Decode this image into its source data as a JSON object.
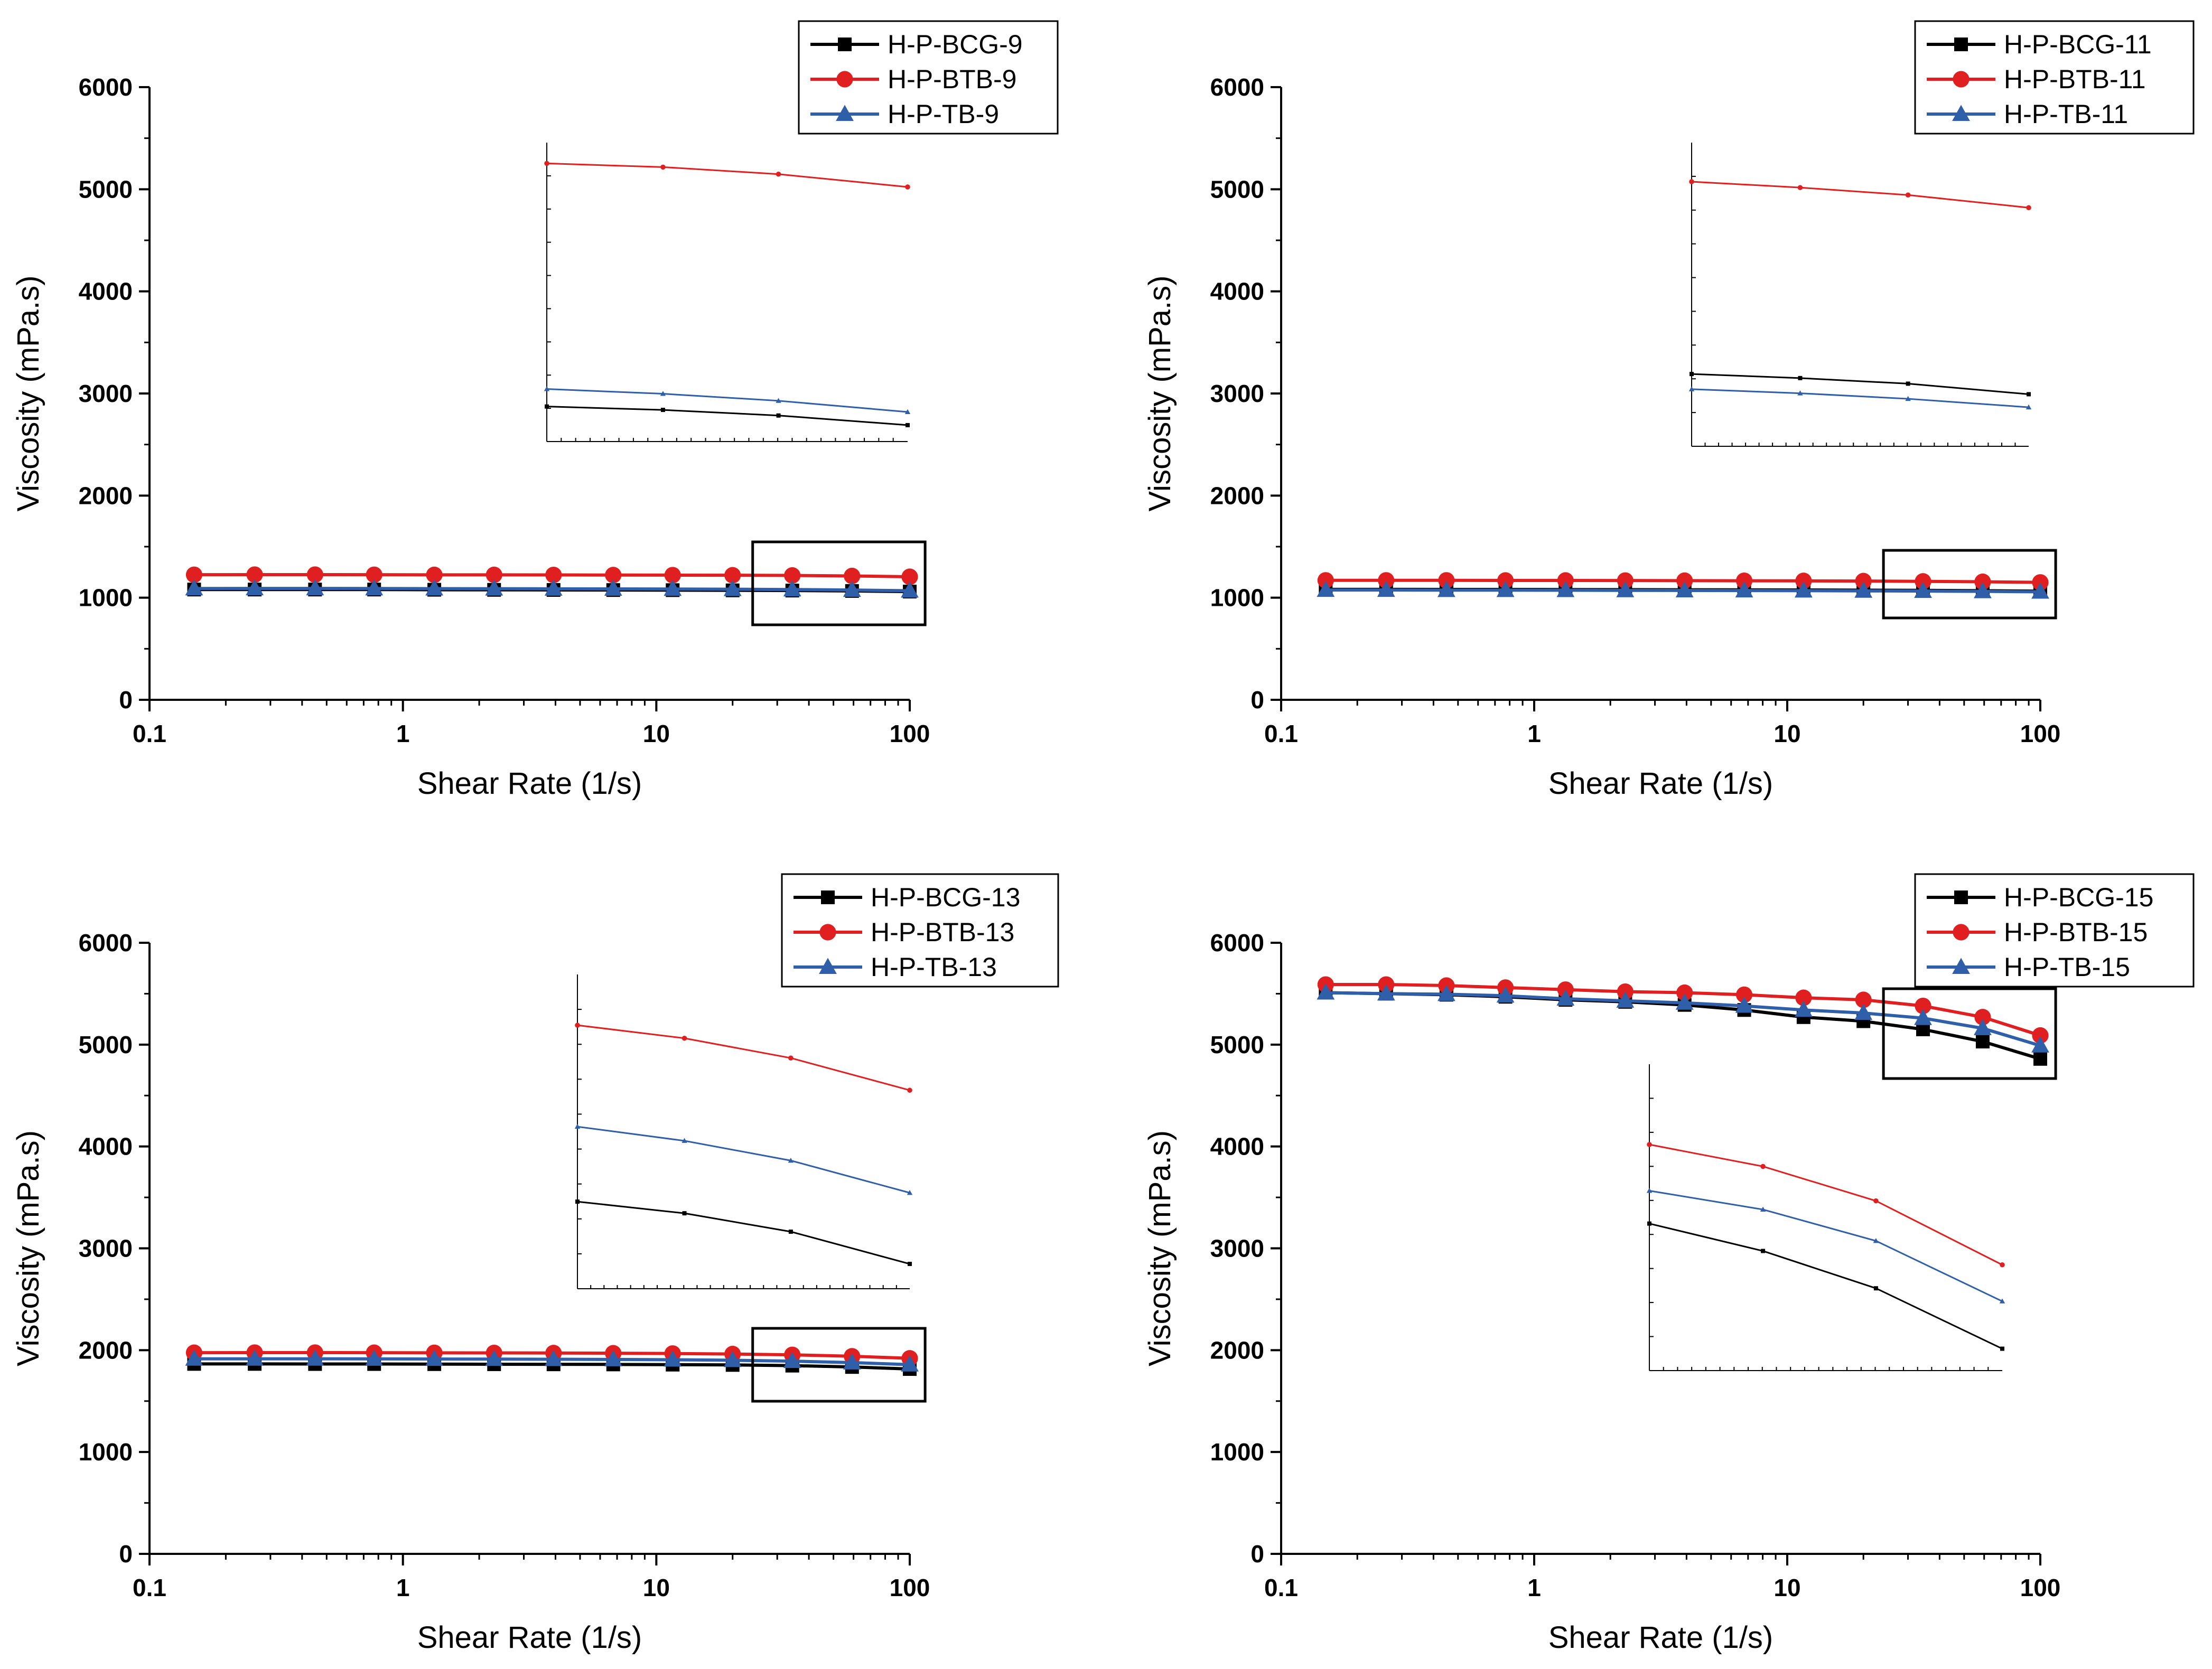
{
  "figure": {
    "colors": {
      "H-P-BCG": "#000000",
      "H-P-BTB": "#e02020",
      "H-P-TB": "#2e5fa8"
    }
  },
  "chart_data": [
    {
      "type": "line",
      "panel": "top-left",
      "xlabel": "Shear Rate (1/s)",
      "ylabel": "Viscosity (mPa.s)",
      "x_scale": "log",
      "xlim": [
        0.1,
        100
      ],
      "ylim": [
        0,
        6000
      ],
      "x_ticks": [
        "0.1",
        "1",
        "10",
        "100"
      ],
      "y_ticks": [
        "0",
        "1000",
        "2000",
        "3000",
        "4000",
        "5000",
        "6000"
      ],
      "legend_position": "top-right",
      "x": [
        0.15,
        0.26,
        0.45,
        0.77,
        1.33,
        2.29,
        3.93,
        6.76,
        11.6,
        20,
        34.4,
        59.2,
        100
      ],
      "series": [
        {
          "name": "H-P-BCG-9",
          "color": "#000000",
          "marker": "square",
          "values": [
            1080,
            1080,
            1080,
            1080,
            1078,
            1077,
            1076,
            1075,
            1074,
            1072,
            1070,
            1066,
            1060
          ]
        },
        {
          "name": "H-P-BTB-9",
          "color": "#e02020",
          "marker": "circle",
          "values": [
            1225,
            1226,
            1226,
            1225,
            1224,
            1224,
            1223,
            1222,
            1221,
            1220,
            1218,
            1213,
            1205
          ]
        },
        {
          "name": "H-P-TB-9",
          "color": "#2e5fa8",
          "marker": "triangle",
          "values": [
            1090,
            1091,
            1091,
            1090,
            1089,
            1088,
            1087,
            1086,
            1085,
            1083,
            1080,
            1075,
            1068
          ]
        }
      ],
      "zoom_box": {
        "xlim": [
          24,
          115
        ]
      },
      "inset": {
        "x": [
          24,
          38,
          60,
          100
        ],
        "ylim": [
          1050,
          1232
        ]
      }
    },
    {
      "type": "line",
      "panel": "top-right",
      "xlabel": "Shear Rate (1/s)",
      "ylabel": "Viscosity (mPa.s)",
      "x_scale": "log",
      "xlim": [
        0.1,
        100
      ],
      "ylim": [
        0,
        6000
      ],
      "x_ticks": [
        "0.1",
        "1",
        "10",
        "100"
      ],
      "y_ticks": [
        "0",
        "1000",
        "2000",
        "3000",
        "4000",
        "5000",
        "6000"
      ],
      "legend_position": "top-right",
      "x": [
        0.15,
        0.26,
        0.45,
        0.77,
        1.33,
        2.29,
        3.93,
        6.76,
        11.6,
        20,
        34.4,
        59.2,
        100
      ],
      "series": [
        {
          "name": "H-P-BCG-11",
          "color": "#000000",
          "marker": "square",
          "values": [
            1082,
            1082,
            1081,
            1081,
            1080,
            1079,
            1078,
            1077,
            1076,
            1074,
            1072,
            1069,
            1064
          ]
        },
        {
          "name": "H-P-BTB-11",
          "color": "#e02020",
          "marker": "circle",
          "values": [
            1170,
            1170,
            1170,
            1169,
            1169,
            1168,
            1167,
            1166,
            1165,
            1163,
            1160,
            1156,
            1150
          ]
        },
        {
          "name": "H-P-TB-11",
          "color": "#2e5fa8",
          "marker": "triangle",
          "values": [
            1075,
            1075,
            1074,
            1074,
            1073,
            1072,
            1071,
            1070,
            1069,
            1067,
            1065,
            1062,
            1058
          ]
        }
      ],
      "zoom_box": {
        "xlim": [
          24,
          115
        ]
      },
      "inset": {
        "x": [
          24,
          38,
          60,
          100
        ],
        "ylim": [
          1040,
          1180
        ]
      }
    },
    {
      "type": "line",
      "panel": "bottom-left",
      "xlabel": "Shear Rate (1/s)",
      "ylabel": "Viscosity (mPa.s)",
      "x_scale": "log",
      "xlim": [
        0.1,
        100
      ],
      "ylim": [
        0,
        6000
      ],
      "x_ticks": [
        "0.1",
        "1",
        "10",
        "100"
      ],
      "y_ticks": [
        "0",
        "1000",
        "2000",
        "3000",
        "4000",
        "5000",
        "6000"
      ],
      "legend_position": "top-right",
      "x": [
        0.15,
        0.26,
        0.45,
        0.77,
        1.33,
        2.29,
        3.93,
        6.76,
        11.6,
        20,
        34.4,
        59.2,
        100
      ],
      "series": [
        {
          "name": "H-P-BCG-13",
          "color": "#000000",
          "marker": "square",
          "values": [
            1865,
            1865,
            1864,
            1864,
            1863,
            1862,
            1861,
            1860,
            1858,
            1855,
            1848,
            1835,
            1815
          ]
        },
        {
          "name": "H-P-BTB-13",
          "color": "#e02020",
          "marker": "circle",
          "values": [
            1975,
            1976,
            1976,
            1975,
            1974,
            1973,
            1972,
            1970,
            1967,
            1962,
            1954,
            1940,
            1920
          ]
        },
        {
          "name": "H-P-TB-13",
          "color": "#2e5fa8",
          "marker": "triangle",
          "values": [
            1915,
            1915,
            1915,
            1914,
            1913,
            1912,
            1911,
            1909,
            1906,
            1901,
            1892,
            1878,
            1858
          ]
        }
      ],
      "zoom_box": {
        "xlim": [
          24,
          115
        ]
      },
      "inset": {
        "x": [
          24,
          38,
          60,
          100
        ],
        "ylim": [
          1800,
          1990
        ]
      }
    },
    {
      "type": "line",
      "panel": "bottom-right",
      "xlabel": "Shear Rate (1/s)",
      "ylabel": "Viscosity (mPa.s)",
      "x_scale": "log",
      "xlim": [
        0.1,
        100
      ],
      "ylim": [
        0,
        6000
      ],
      "x_ticks": [
        "0.1",
        "1",
        "10",
        "100"
      ],
      "y_ticks": [
        "0",
        "1000",
        "2000",
        "3000",
        "4000",
        "5000",
        "6000"
      ],
      "legend_position": "top-right",
      "x": [
        0.15,
        0.26,
        0.45,
        0.77,
        1.33,
        2.29,
        3.93,
        6.76,
        11.6,
        20,
        34.4,
        59.2,
        100
      ],
      "series": [
        {
          "name": "H-P-BCG-15",
          "color": "#000000",
          "marker": "square",
          "values": [
            5510,
            5500,
            5490,
            5470,
            5440,
            5420,
            5390,
            5340,
            5270,
            5230,
            5150,
            5030,
            4860
          ]
        },
        {
          "name": "H-P-BTB-15",
          "color": "#e02020",
          "marker": "circle",
          "values": [
            5590,
            5590,
            5580,
            5560,
            5540,
            5520,
            5510,
            5490,
            5460,
            5440,
            5380,
            5270,
            5090
          ]
        },
        {
          "name": "H-P-TB-15",
          "color": "#2e5fa8",
          "marker": "triangle",
          "values": [
            5510,
            5500,
            5495,
            5480,
            5450,
            5430,
            5410,
            5380,
            5340,
            5310,
            5260,
            5160,
            4990
          ]
        }
      ],
      "zoom_box": {
        "xlim": [
          24,
          115
        ]
      },
      "inset": {
        "x": [
          24,
          38,
          60,
          100
        ],
        "ylim": [
          4800,
          5640
        ]
      }
    }
  ]
}
